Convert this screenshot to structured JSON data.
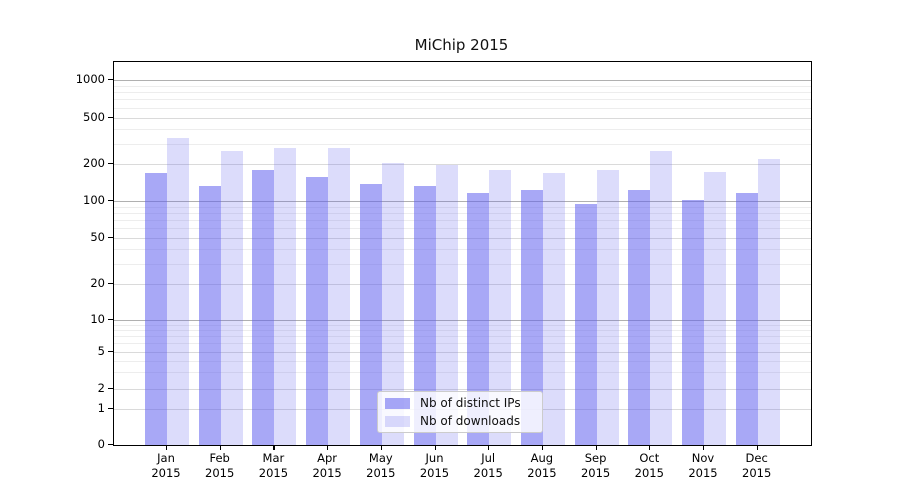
{
  "chart_data": {
    "type": "bar",
    "title": "MiChip 2015",
    "categories": [
      "Jan 2015",
      "Feb 2015",
      "Mar 2015",
      "Apr 2015",
      "May 2015",
      "Jun 2015",
      "Jul 2015",
      "Aug 2015",
      "Sep 2015",
      "Oct 2015",
      "Nov 2015",
      "Dec 2015"
    ],
    "x_tick_months": [
      "Jan",
      "Feb",
      "Mar",
      "Apr",
      "May",
      "Jun",
      "Jul",
      "Aug",
      "Sep",
      "Oct",
      "Nov",
      "Dec"
    ],
    "x_tick_year": "2015",
    "series": [
      {
        "name": "Nb of distinct IPs",
        "color": "rgba(96,96,238,0.55)",
        "values": [
          170,
          132,
          180,
          158,
          138,
          133,
          116,
          123,
          94,
          122,
          101,
          116
        ]
      },
      {
        "name": "Nb of downloads",
        "color": "rgba(96,96,238,0.22)",
        "values": [
          333,
          260,
          275,
          272,
          202,
          198,
          179,
          169,
          178,
          258,
          171,
          220
        ]
      }
    ],
    "yscale": "symlog",
    "ylim": [
      0,
      1400
    ],
    "y_ticks": [
      0,
      1,
      2,
      5,
      10,
      20,
      50,
      100,
      200,
      500,
      1000
    ],
    "y_tick_labels": [
      "0",
      "1",
      "2",
      "5",
      "10",
      "20",
      "50",
      "100",
      "200",
      "500",
      "1000"
    ],
    "y_major_gridlines": [
      10,
      100,
      1000
    ],
    "y_labeled_gridlines": [
      1,
      2,
      5,
      20,
      50,
      200,
      500
    ],
    "y_minor_gridlines": [
      3,
      4,
      6,
      7,
      8,
      9,
      30,
      40,
      60,
      70,
      80,
      90,
      300,
      400,
      600,
      700,
      800,
      900
    ],
    "grid": true,
    "legend": {
      "position": "lower-center",
      "entries": [
        "Nb of distinct IPs",
        "Nb of downloads"
      ]
    },
    "colors": {
      "axis": "#000000",
      "grid_major": "#b0b0b0",
      "grid_light": "#dadada",
      "grid_minor": "#ededed",
      "bar_dark_rendered": "#a8a8f6",
      "bar_light_rendered": "#dcdcfb"
    }
  }
}
